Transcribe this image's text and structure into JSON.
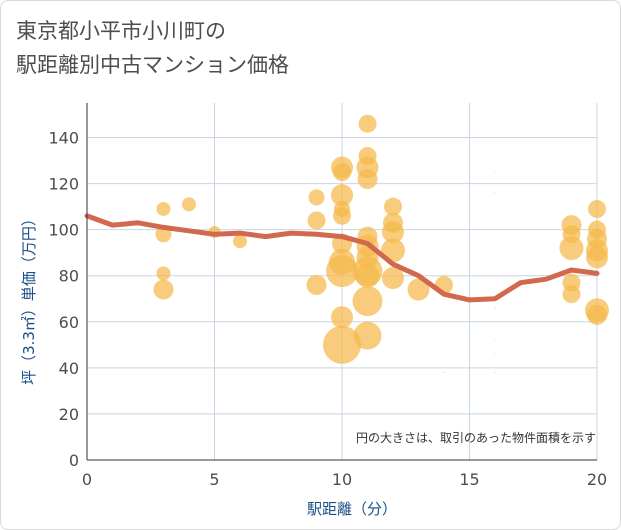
{
  "chart_data": {
    "type": "scatter",
    "title_lines": [
      "東京都小平市小川町の",
      "駅距離別中古マンション価格"
    ],
    "xlabel": "駅距離（分）",
    "ylabel": "坪（3.3㎡）単価（万円）",
    "xlim": [
      0,
      20
    ],
    "ylim": [
      0,
      155
    ],
    "x_ticks": [
      0,
      5,
      10,
      15,
      20
    ],
    "y_ticks": [
      0,
      20,
      40,
      60,
      80,
      100,
      120,
      140
    ],
    "grid": true,
    "note": "円の大きさは、取引のあった物件面積を示す",
    "colors": {
      "bubble": "#f5b84a",
      "line": "#d2694f",
      "grid": "#c8d5e0",
      "axis": "#333333"
    },
    "series": [
      {
        "kind": "bubble",
        "points": [
          {
            "x": 3,
            "y": 109,
            "s": 7
          },
          {
            "x": 3,
            "y": 98,
            "s": 8
          },
          {
            "x": 3,
            "y": 81,
            "s": 7
          },
          {
            "x": 3,
            "y": 74,
            "s": 10
          },
          {
            "x": 4,
            "y": 111,
            "s": 7
          },
          {
            "x": 5,
            "y": 99,
            "s": 6
          },
          {
            "x": 6,
            "y": 95,
            "s": 7
          },
          {
            "x": 9,
            "y": 114,
            "s": 8
          },
          {
            "x": 9,
            "y": 104,
            "s": 9
          },
          {
            "x": 9,
            "y": 76,
            "s": 10
          },
          {
            "x": 10,
            "y": 127,
            "s": 11
          },
          {
            "x": 10,
            "y": 125,
            "s": 9
          },
          {
            "x": 10,
            "y": 115,
            "s": 11
          },
          {
            "x": 10,
            "y": 109,
            "s": 8
          },
          {
            "x": 10,
            "y": 106,
            "s": 9
          },
          {
            "x": 10,
            "y": 94,
            "s": 10
          },
          {
            "x": 10,
            "y": 86,
            "s": 13
          },
          {
            "x": 10,
            "y": 82,
            "s": 16
          },
          {
            "x": 10,
            "y": 62,
            "s": 11
          },
          {
            "x": 10,
            "y": 50,
            "s": 19
          },
          {
            "x": 11,
            "y": 146,
            "s": 9
          },
          {
            "x": 11,
            "y": 132,
            "s": 9
          },
          {
            "x": 11,
            "y": 127,
            "s": 11
          },
          {
            "x": 11,
            "y": 122,
            "s": 10
          },
          {
            "x": 11,
            "y": 97,
            "s": 10
          },
          {
            "x": 11,
            "y": 93,
            "s": 11
          },
          {
            "x": 11,
            "y": 88,
            "s": 11
          },
          {
            "x": 11,
            "y": 82,
            "s": 15
          },
          {
            "x": 11,
            "y": 80,
            "s": 12
          },
          {
            "x": 11,
            "y": 69,
            "s": 15
          },
          {
            "x": 11,
            "y": 54,
            "s": 14
          },
          {
            "x": 12,
            "y": 110,
            "s": 9
          },
          {
            "x": 12,
            "y": 103,
            "s": 10
          },
          {
            "x": 12,
            "y": 99,
            "s": 11
          },
          {
            "x": 12,
            "y": 91,
            "s": 12
          },
          {
            "x": 12,
            "y": 79,
            "s": 11
          },
          {
            "x": 13,
            "y": 74,
            "s": 11
          },
          {
            "x": 14,
            "y": 76,
            "s": 9
          },
          {
            "x": 19,
            "y": 102,
            "s": 10
          },
          {
            "x": 19,
            "y": 98,
            "s": 9
          },
          {
            "x": 19,
            "y": 92,
            "s": 12
          },
          {
            "x": 19,
            "y": 77,
            "s": 9
          },
          {
            "x": 19,
            "y": 72,
            "s": 9
          },
          {
            "x": 20,
            "y": 109,
            "s": 9
          },
          {
            "x": 20,
            "y": 100,
            "s": 9
          },
          {
            "x": 20,
            "y": 96,
            "s": 10
          },
          {
            "x": 20,
            "y": 91,
            "s": 11
          },
          {
            "x": 20,
            "y": 88,
            "s": 11
          },
          {
            "x": 20,
            "y": 65,
            "s": 12
          },
          {
            "x": 20,
            "y": 63,
            "s": 10
          },
          {
            "x": 14,
            "y": 38,
            "s": 0.6
          },
          {
            "x": 16,
            "y": 125,
            "s": 0.5
          },
          {
            "x": 16,
            "y": 116,
            "s": 0.5
          },
          {
            "x": 16,
            "y": 66,
            "s": 0.6
          },
          {
            "x": 16,
            "y": 60,
            "s": 0.6
          },
          {
            "x": 16,
            "y": 52,
            "s": 0.5
          },
          {
            "x": 16,
            "y": 46,
            "s": 0.5
          },
          {
            "x": 16,
            "y": 40,
            "s": 0.5
          },
          {
            "x": 16,
            "y": 38,
            "s": 0.5
          }
        ]
      },
      {
        "kind": "line",
        "points": [
          {
            "x": 0,
            "y": 106
          },
          {
            "x": 1,
            "y": 102
          },
          {
            "x": 2,
            "y": 103
          },
          {
            "x": 3,
            "y": 101
          },
          {
            "x": 4,
            "y": 99.5
          },
          {
            "x": 5,
            "y": 98
          },
          {
            "x": 6,
            "y": 98.5
          },
          {
            "x": 7,
            "y": 97
          },
          {
            "x": 8,
            "y": 98.5
          },
          {
            "x": 9,
            "y": 98
          },
          {
            "x": 10,
            "y": 97
          },
          {
            "x": 11,
            "y": 94
          },
          {
            "x": 12,
            "y": 85
          },
          {
            "x": 13,
            "y": 80
          },
          {
            "x": 14,
            "y": 72
          },
          {
            "x": 15,
            "y": 69.5
          },
          {
            "x": 16,
            "y": 70
          },
          {
            "x": 17,
            "y": 77
          },
          {
            "x": 18,
            "y": 78.5
          },
          {
            "x": 19,
            "y": 82.5
          },
          {
            "x": 20,
            "y": 81
          }
        ]
      }
    ]
  }
}
